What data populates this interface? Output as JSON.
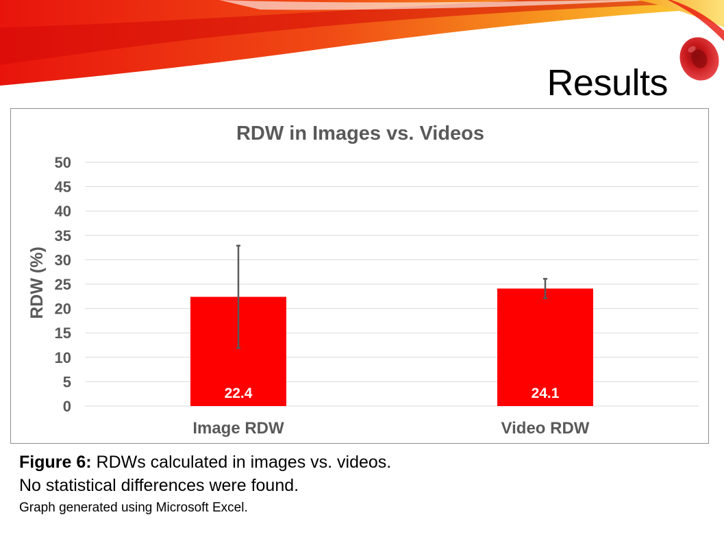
{
  "slide": {
    "title": "Results",
    "caption": {
      "figure_label": "Figure 6:",
      "figure_text": " RDWs calculated in images vs. videos.",
      "line2": "No statistical differences were found.",
      "line3": "Graph generated using Microsoft Excel."
    },
    "colors": {
      "swoosh_red": "#e8140c",
      "swoosh_orange": "#f7931e",
      "swoosh_yellow": "#fcd43a",
      "blood_cell": "#c8191c"
    },
    "decorations": [
      "red-orange-swoosh",
      "red-blood-cell-icon"
    ]
  },
  "chart_data": {
    "type": "bar",
    "title": "RDW in Images vs. Videos",
    "xlabel": "",
    "ylabel": "RDW (%)",
    "categories": [
      "Image RDW",
      "Video RDW"
    ],
    "values": [
      22.4,
      24.1
    ],
    "data_labels": [
      "22.4",
      "24.1"
    ],
    "error_bars": [
      {
        "low": 11.9,
        "high": 32.9
      },
      {
        "low": 22.1,
        "high": 26.1
      }
    ],
    "ylim": [
      0,
      50
    ],
    "yticks": [
      "0",
      "5",
      "10",
      "15",
      "20",
      "25",
      "30",
      "35",
      "40",
      "45",
      "50"
    ],
    "grid": true,
    "legend": "none",
    "colors": {
      "bar": "#ff0000",
      "text": "#595959",
      "grid": "#d9d9d9",
      "error": "#595959",
      "label": "#ffffff"
    }
  }
}
